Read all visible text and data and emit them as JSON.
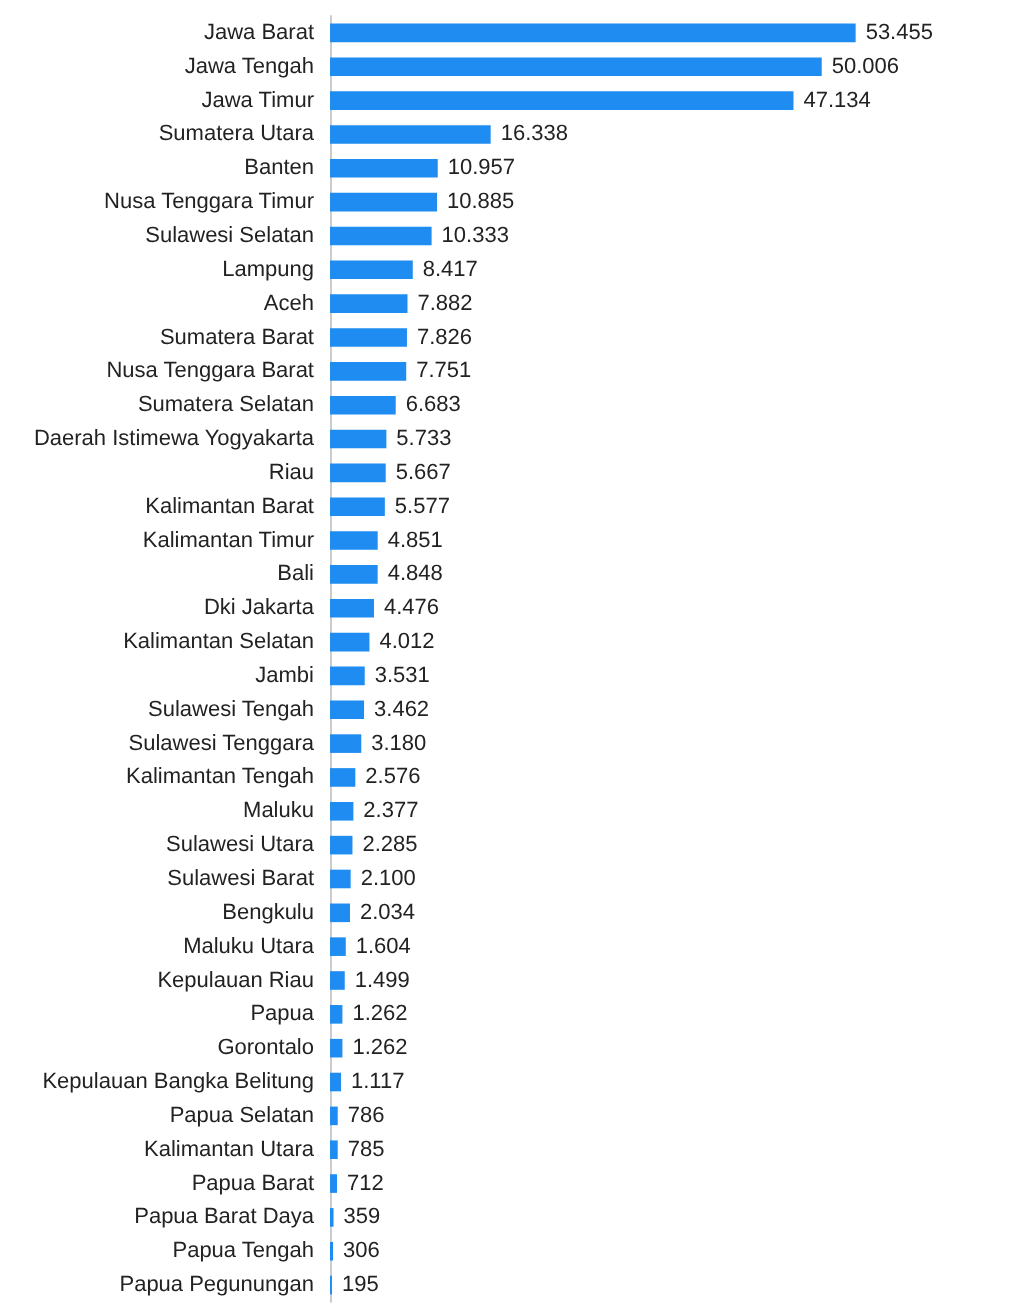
{
  "chart_data": {
    "type": "bar",
    "orientation": "horizontal",
    "color": "#1e8cf0",
    "categories": [
      "Jawa Barat",
      "Jawa Tengah",
      "Jawa Timur",
      "Sumatera Utara",
      "Banten",
      "Nusa Tenggara Timur",
      "Sulawesi Selatan",
      "Lampung",
      "Aceh",
      "Sumatera Barat",
      "Nusa Tenggara Barat",
      "Sumatera Selatan",
      "Daerah Istimewa Yogyakarta",
      "Riau",
      "Kalimantan Barat",
      "Kalimantan Timur",
      "Bali",
      "Dki Jakarta",
      "Kalimantan Selatan",
      "Jambi",
      "Sulawesi Tengah",
      "Sulawesi Tenggara",
      "Kalimantan Tengah",
      "Maluku",
      "Sulawesi Utara",
      "Sulawesi Barat",
      "Bengkulu",
      "Maluku Utara",
      "Kepulauan Riau",
      "Papua",
      "Gorontalo",
      "Kepulauan Bangka Belitung",
      "Papua Selatan",
      "Kalimantan Utara",
      "Papua Barat",
      "Papua Barat Daya",
      "Papua Tengah",
      "Papua Pegunungan"
    ],
    "values": [
      53455,
      50006,
      47134,
      16338,
      10957,
      10885,
      10333,
      8417,
      7882,
      7826,
      7751,
      6683,
      5733,
      5667,
      5577,
      4851,
      4848,
      4476,
      4012,
      3531,
      3462,
      3180,
      2576,
      2377,
      2285,
      2100,
      2034,
      1604,
      1499,
      1262,
      1262,
      1117,
      786,
      785,
      712,
      359,
      306,
      195
    ],
    "value_labels": [
      "53.455",
      "50.006",
      "47.134",
      "16.338",
      "10.957",
      "10.885",
      "10.333",
      "8.417",
      "7.882",
      "7.826",
      "7.751",
      "6.683",
      "5.733",
      "5.667",
      "5.577",
      "4.851",
      "4.848",
      "4.476",
      "4.012",
      "3.531",
      "3.462",
      "3.180",
      "2.576",
      "2.377",
      "2.285",
      "2.100",
      "2.034",
      "1.604",
      "1.499",
      "1.262",
      "1.262",
      "1.117",
      "786",
      "785",
      "712",
      "359",
      "306",
      "195"
    ]
  }
}
